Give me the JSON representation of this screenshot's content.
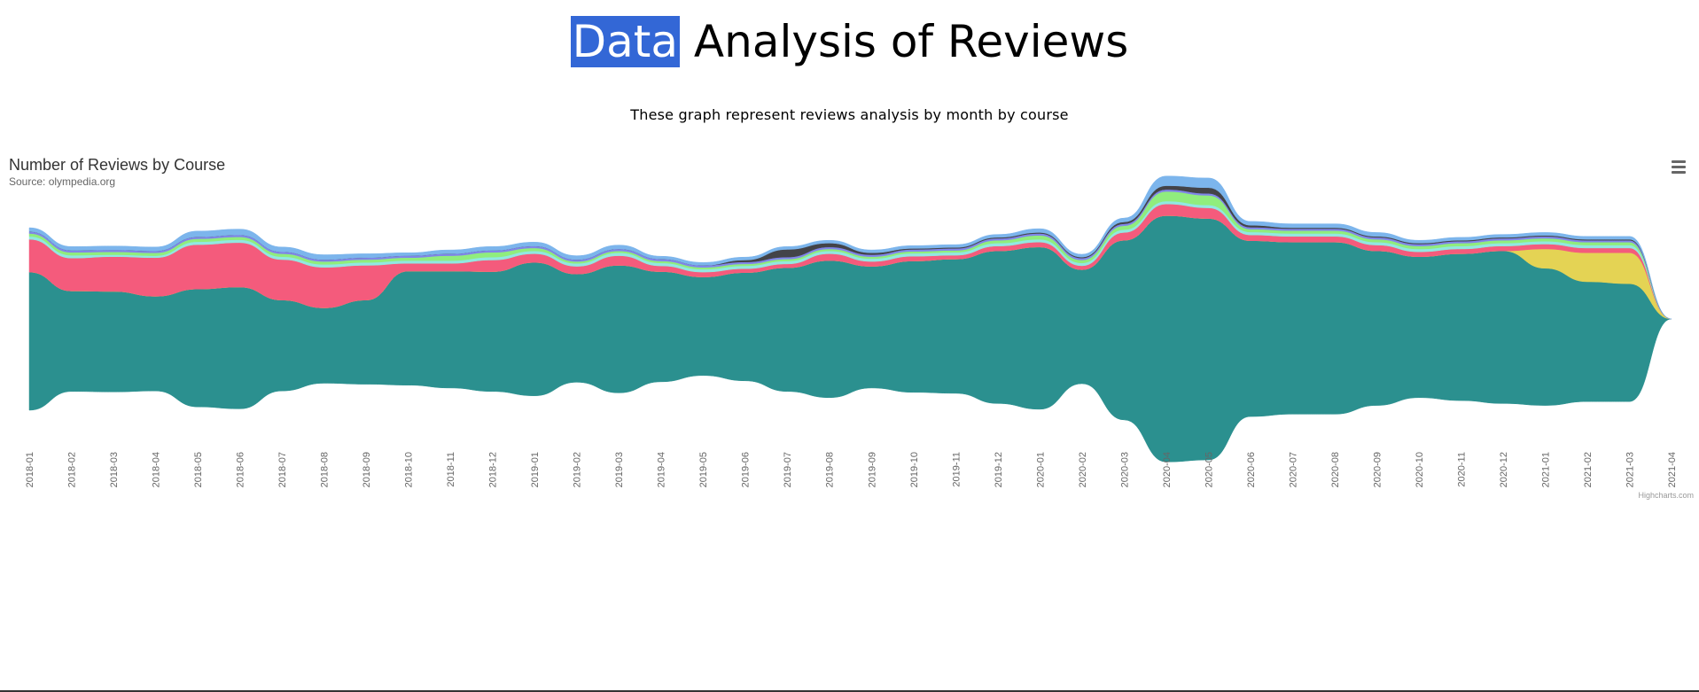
{
  "header": {
    "title_highlight": "Data",
    "title_rest": " Analysis of Reviews",
    "subtitle": "These graph represent reviews analysis by month by course"
  },
  "chart_data": {
    "type": "area",
    "stacking": "streamgraph",
    "title": "Number of Reviews by Course",
    "subtitle": "Source: olympedia.org",
    "credits": "Highcharts.com",
    "menu_icon": "hamburger-menu-icon",
    "categories": [
      "2018-01",
      "2018-02",
      "2018-03",
      "2018-04",
      "2018-05",
      "2018-06",
      "2018-07",
      "2018-08",
      "2018-09",
      "2018-10",
      "2018-11",
      "2018-12",
      "2019-01",
      "2019-02",
      "2019-03",
      "2019-04",
      "2019-05",
      "2019-06",
      "2019-07",
      "2019-08",
      "2019-09",
      "2019-10",
      "2019-11",
      "2019-12",
      "2020-01",
      "2020-02",
      "2020-03",
      "2020-04",
      "2020-05",
      "2020-06",
      "2020-07",
      "2020-08",
      "2020-09",
      "2020-10",
      "2020-11",
      "2020-12",
      "2021-01",
      "2021-02",
      "2021-03",
      "2021-04"
    ],
    "colors": [
      "#2b908f",
      "#e4d354",
      "#f45b7c",
      "#91e8e1",
      "#90ed7d",
      "#8085e9",
      "#434348",
      "#7cb5ec"
    ],
    "series": [
      {
        "color": "#2b908f",
        "values": [
          143,
          104,
          104,
          98,
          122,
          126,
          94,
          78,
          87,
          118,
          121,
          124,
          138,
          112,
          132,
          114,
          102,
          112,
          128,
          142,
          126,
          136,
          139,
          158,
          168,
          118,
          186,
          255,
          250,
          182,
          178,
          178,
          160,
          146,
          152,
          158,
          142,
          124,
          122,
          0
        ]
      },
      {
        "color": "#e4d354",
        "values": [
          0,
          0,
          0,
          0,
          0,
          0,
          0,
          0,
          0,
          0,
          0,
          0,
          0,
          0,
          0,
          0,
          0,
          0,
          0,
          0,
          0,
          0,
          0,
          0,
          0,
          0,
          0,
          0,
          0,
          0,
          0,
          0,
          0,
          0,
          0,
          0,
          20,
          30,
          32,
          0
        ]
      },
      {
        "color": "#f45b7c",
        "values": [
          34,
          34,
          36,
          40,
          46,
          46,
          42,
          42,
          36,
          8,
          8,
          12,
          9,
          8,
          10,
          6,
          5,
          4,
          4,
          7,
          5,
          5,
          4,
          5,
          5,
          4,
          8,
          12,
          11,
          6,
          6,
          6,
          6,
          5,
          5,
          5,
          5,
          5,
          5,
          0
        ]
      },
      {
        "color": "#91e8e1",
        "values": [
          3,
          3,
          2,
          2,
          3,
          3,
          3,
          3,
          3,
          3,
          3,
          3,
          3,
          3,
          3,
          3,
          3,
          3,
          3,
          3,
          3,
          3,
          3,
          3,
          3,
          3,
          3,
          3,
          3,
          3,
          3,
          3,
          3,
          3,
          3,
          3,
          3,
          3,
          3,
          0
        ]
      },
      {
        "color": "#90ed7d",
        "values": [
          3,
          3,
          3,
          3,
          3,
          3,
          3,
          3,
          3,
          3,
          5,
          5,
          3,
          2,
          2,
          2,
          2,
          2,
          2,
          2,
          2,
          2,
          2,
          3,
          4,
          3,
          4,
          10,
          10,
          3,
          3,
          3,
          3,
          3,
          3,
          3,
          3,
          3,
          3,
          0
        ]
      },
      {
        "color": "#8085e9",
        "values": [
          2,
          2,
          2,
          2,
          2,
          2,
          2,
          2,
          2,
          2,
          2,
          2,
          2,
          2,
          2,
          2,
          2,
          2,
          2,
          2,
          2,
          2,
          2,
          2,
          2,
          2,
          2,
          2,
          2,
          2,
          2,
          2,
          2,
          2,
          2,
          2,
          2,
          2,
          2,
          0
        ]
      },
      {
        "color": "#434348",
        "values": [
          0,
          0,
          0,
          0,
          0,
          0,
          0,
          0,
          0,
          0,
          0,
          0,
          0,
          0,
          0,
          0,
          0,
          2,
          8,
          4,
          2,
          1,
          1,
          1,
          1,
          1,
          2,
          4,
          6,
          2,
          1,
          1,
          1,
          1,
          1,
          1,
          1,
          1,
          1,
          0
        ]
      },
      {
        "color": "#7cb5ec",
        "values": [
          4,
          4,
          4,
          4,
          6,
          6,
          5,
          5,
          4,
          3,
          4,
          4,
          4,
          4,
          4,
          3,
          3,
          3,
          3,
          3,
          3,
          3,
          3,
          3,
          4,
          3,
          4,
          10,
          10,
          4,
          4,
          4,
          4,
          3,
          3,
          3,
          3,
          3,
          3,
          0
        ]
      }
    ]
  }
}
